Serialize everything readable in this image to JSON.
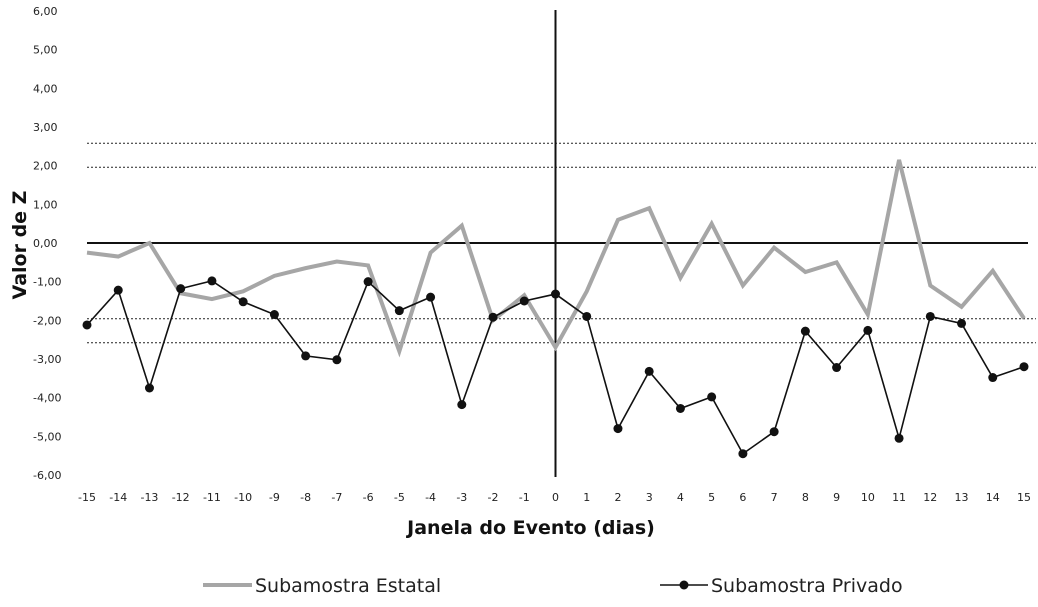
{
  "chart_data": {
    "type": "line",
    "title": "",
    "xlabel": "Janela do Evento (dias)",
    "ylabel": "Valor de Z",
    "x": [
      -15,
      -14,
      -13,
      -12,
      -11,
      -10,
      -9,
      -8,
      -7,
      -6,
      -5,
      -4,
      -3,
      -2,
      -1,
      0,
      1,
      2,
      3,
      4,
      5,
      6,
      7,
      8,
      9,
      10,
      11,
      12,
      13,
      14,
      15
    ],
    "ylim": [
      -6,
      6
    ],
    "y_ticks": [
      "6,00",
      "5,00",
      "4,00",
      "3,00",
      "2,00",
      "1,00",
      "0,00",
      "-1,00",
      "-2,00",
      "-3,00",
      "-4,00",
      "-5,00",
      "-6,00"
    ],
    "reference_lines": [
      2.58,
      1.96,
      -1.96,
      -2.58
    ],
    "legend_placement": "bottom",
    "series": [
      {
        "name": "Subamostra Estatal",
        "color": "#a6a6a6",
        "marker": "none",
        "values": [
          -0.25,
          -0.35,
          0.0,
          -1.3,
          -1.45,
          -1.25,
          -0.85,
          -0.65,
          -0.48,
          -0.58,
          -2.8,
          -0.25,
          0.45,
          -2.0,
          -1.35,
          -2.7,
          -1.25,
          0.6,
          0.9,
          -0.9,
          0.5,
          -1.1,
          -0.12,
          -0.75,
          -0.5,
          -1.85,
          2.15,
          -1.1,
          -1.65,
          -0.72,
          -1.95
        ]
      },
      {
        "name": "Subamostra Privado",
        "color": "#111111",
        "marker": "circle",
        "values": [
          -2.12,
          -1.22,
          -3.75,
          -1.18,
          -0.98,
          -1.52,
          -1.85,
          -2.92,
          -3.02,
          -1.0,
          -1.75,
          -1.4,
          -4.18,
          -1.92,
          -1.5,
          -1.32,
          -1.9,
          -4.8,
          -3.32,
          -4.28,
          -3.98,
          -5.45,
          -4.88,
          -2.28,
          -3.22,
          -2.26,
          -5.05,
          -1.9,
          -2.08,
          -3.48,
          -3.2
        ]
      }
    ]
  }
}
